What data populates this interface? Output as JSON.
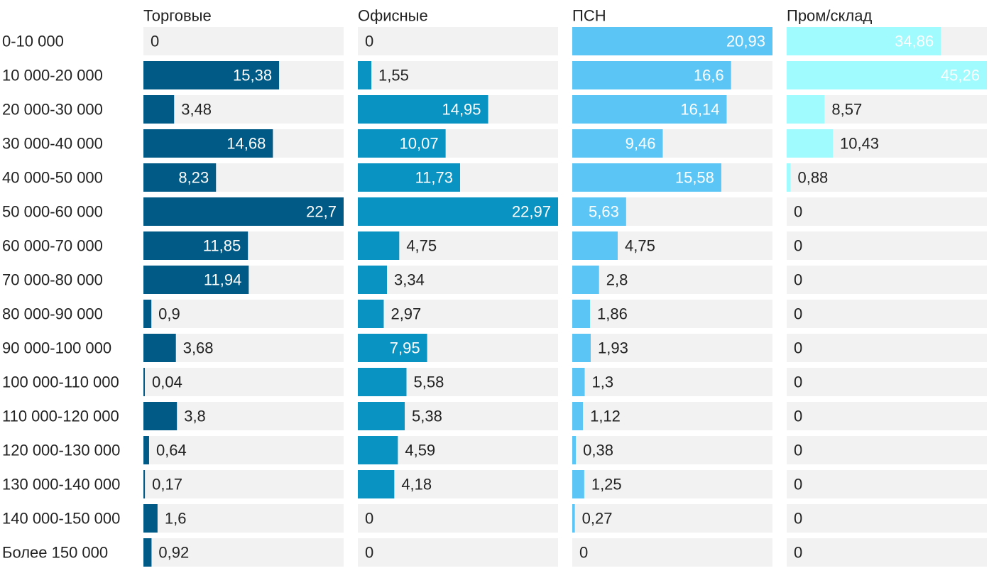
{
  "chart_data": {
    "type": "bar",
    "orientation": "horizontal",
    "layout": "small-multiples",
    "title": "",
    "xlabel": "",
    "ylabel": "",
    "categories": [
      "0-10 000",
      "10 000-20 000",
      "20 000-30 000",
      "30 000-40 000",
      "40 000-50 000",
      "50 000-60 000",
      "60 000-70 000",
      "70 000-80 000",
      "80 000-90 000",
      "90 000-100 000",
      "100 000-110 000",
      "110 000-120 000",
      "120 000-130 000",
      "130 000-140 000",
      "140 000-150 000",
      "Более 150 000"
    ],
    "series": [
      {
        "name": "Торговые",
        "color": "#005a85",
        "max": 22.7,
        "labels": [
          "0",
          "15,38",
          "3,48",
          "14,68",
          "8,23",
          "22,7",
          "11,85",
          "11,94",
          "0,9",
          "3,68",
          "0,04",
          "3,8",
          "0,64",
          "0,17",
          "1,6",
          "0,92"
        ],
        "values": [
          0,
          15.38,
          3.48,
          14.68,
          8.23,
          22.7,
          11.85,
          11.94,
          0.9,
          3.68,
          0.04,
          3.8,
          0.64,
          0.17,
          1.6,
          0.92
        ]
      },
      {
        "name": "Офисные",
        "color": "#0893c3",
        "max": 22.97,
        "labels": [
          "0",
          "1,55",
          "14,95",
          "10,07",
          "11,73",
          "22,97",
          "4,75",
          "3,34",
          "2,97",
          "7,95",
          "5,58",
          "5,38",
          "4,59",
          "4,18",
          "0",
          "0"
        ],
        "values": [
          0,
          1.55,
          14.95,
          10.07,
          11.73,
          22.97,
          4.75,
          3.34,
          2.97,
          7.95,
          5.58,
          5.38,
          4.59,
          4.18,
          0,
          0
        ]
      },
      {
        "name": "ПСН",
        "color": "#5bc6f6",
        "max": 20.93,
        "labels": [
          "20,93",
          "16,6",
          "16,14",
          "9,46",
          "15,58",
          "5,63",
          "4,75",
          "2,8",
          "1,86",
          "1,93",
          "1,3",
          "1,12",
          "0,38",
          "1,25",
          "0,27",
          "0"
        ],
        "values": [
          20.93,
          16.6,
          16.14,
          9.46,
          15.58,
          5.63,
          4.75,
          2.8,
          1.86,
          1.93,
          1.3,
          1.12,
          0.38,
          1.25,
          0.27,
          0
        ]
      },
      {
        "name": "Пром/склад",
        "color": "#9ffbfe",
        "max": 45.26,
        "labels": [
          "34,86",
          "45,26",
          "8,57",
          "10,43",
          "0,88",
          "0",
          "0",
          "0",
          "0",
          "0",
          "0",
          "0",
          "0",
          "0",
          "0",
          "0"
        ],
        "values": [
          34.86,
          45.26,
          8.57,
          10.43,
          0.88,
          0,
          0,
          0,
          0,
          0,
          0,
          0,
          0,
          0,
          0,
          0
        ]
      }
    ],
    "track_color": "#f2f2f2",
    "label_color_dark": "#222222",
    "label_color_light": "#ffffff"
  }
}
